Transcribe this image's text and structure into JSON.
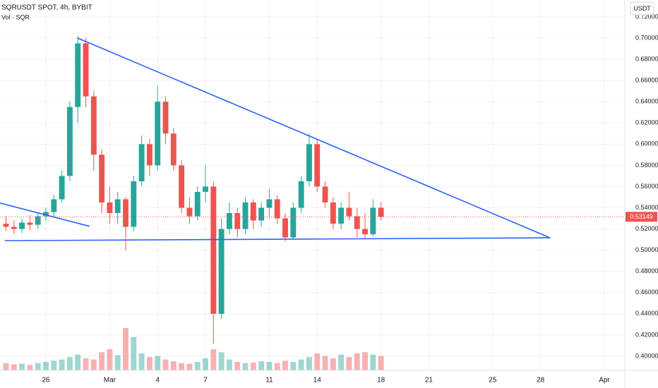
{
  "chart_data": {
    "type": "candlestick",
    "title": "SQRUSDT SPOT, 4h, BYBIT",
    "subtitle": "Vol · SQR",
    "currency": "USDT",
    "up_color": "#26a69a",
    "down_color": "#ef5350",
    "line_color": "#2962ff",
    "grid": true,
    "x": [
      -2.5,
      -2.0,
      -1.5,
      -1.0,
      -0.5,
      0.0,
      0.5,
      1.0,
      1.5,
      2.0,
      2.5,
      3.0,
      3.5,
      4.0,
      4.5,
      5.0,
      5.5,
      6.0,
      6.5,
      7.0,
      7.5,
      8.0,
      8.5,
      9.0,
      9.5,
      10.0,
      10.5,
      11.0,
      11.5,
      12.0,
      12.5,
      13.0,
      13.5,
      14.0,
      14.5,
      15.0,
      15.5,
      16.0,
      16.5,
      17.0,
      17.5,
      18.0,
      18.5,
      19.0,
      19.5,
      20.0,
      20.5,
      21.0
    ],
    "open": [
      0.525,
      0.522,
      0.52,
      0.526,
      0.524,
      0.532,
      0.536,
      0.548,
      0.57,
      0.635,
      0.695,
      0.645,
      0.59,
      0.545,
      0.535,
      0.548,
      0.522,
      0.565,
      0.6,
      0.58,
      0.64,
      0.61,
      0.58,
      0.54,
      0.532,
      0.555,
      0.56,
      0.44,
      0.52,
      0.535,
      0.52,
      0.545,
      0.528,
      0.54,
      0.548,
      0.53,
      0.512,
      0.54,
      0.565,
      0.6,
      0.56,
      0.545,
      0.525,
      0.54,
      0.532,
      0.52,
      0.515,
      0.54
    ],
    "high": [
      0.532,
      0.528,
      0.53,
      0.533,
      0.535,
      0.54,
      0.552,
      0.575,
      0.64,
      0.702,
      0.7,
      0.65,
      0.595,
      0.56,
      0.555,
      0.55,
      0.57,
      0.608,
      0.605,
      0.655,
      0.645,
      0.615,
      0.585,
      0.55,
      0.56,
      0.58,
      0.565,
      0.53,
      0.545,
      0.54,
      0.55,
      0.548,
      0.545,
      0.558,
      0.552,
      0.535,
      0.545,
      0.57,
      0.61,
      0.605,
      0.565,
      0.55,
      0.545,
      0.555,
      0.54,
      0.535,
      0.548,
      0.545
    ],
    "low": [
      0.518,
      0.515,
      0.516,
      0.519,
      0.52,
      0.528,
      0.532,
      0.545,
      0.565,
      0.62,
      0.635,
      0.575,
      0.535,
      0.525,
      0.525,
      0.5,
      0.518,
      0.56,
      0.57,
      0.575,
      0.6,
      0.575,
      0.535,
      0.525,
      0.528,
      0.545,
      0.412,
      0.435,
      0.515,
      0.512,
      0.515,
      0.52,
      0.522,
      0.53,
      0.525,
      0.508,
      0.51,
      0.535,
      0.56,
      0.555,
      0.54,
      0.52,
      0.52,
      0.528,
      0.512,
      0.51,
      0.513,
      0.528
    ],
    "close": [
      0.522,
      0.52,
      0.526,
      0.524,
      0.532,
      0.536,
      0.548,
      0.57,
      0.635,
      0.695,
      0.645,
      0.59,
      0.545,
      0.535,
      0.548,
      0.522,
      0.565,
      0.6,
      0.58,
      0.64,
      0.61,
      0.58,
      0.54,
      0.532,
      0.555,
      0.56,
      0.44,
      0.52,
      0.535,
      0.52,
      0.545,
      0.528,
      0.54,
      0.548,
      0.53,
      0.512,
      0.54,
      0.565,
      0.6,
      0.56,
      0.545,
      0.525,
      0.54,
      0.532,
      0.52,
      0.515,
      0.54,
      0.53149
    ],
    "volume": [
      12,
      10,
      11,
      9,
      12,
      14,
      16,
      18,
      22,
      26,
      20,
      18,
      30,
      35,
      25,
      70,
      55,
      28,
      22,
      24,
      18,
      15,
      12,
      11,
      14,
      20,
      35,
      30,
      18,
      14,
      12,
      13,
      15,
      14,
      12,
      16,
      14,
      18,
      22,
      28,
      24,
      20,
      26,
      22,
      28,
      30,
      26,
      24
    ],
    "last_label": "0.53149",
    "trendlines": [
      {
        "x": [
          1.99,
          31.6
        ],
        "y": [
          0.7,
          0.5117
        ]
      },
      {
        "x": [
          -2.57,
          31.6
        ],
        "y": [
          0.509,
          0.5117
        ]
      },
      {
        "x": [
          -2.88,
          2.74
        ],
        "y": [
          0.5445,
          0.5225
        ]
      }
    ],
    "xlim": [
      -2.876,
      36.28
    ],
    "xticks": [
      {
        "value": 0,
        "label": "26"
      },
      {
        "value": 4,
        "label": "Mar"
      },
      {
        "value": 7,
        "label": "4"
      },
      {
        "value": 10,
        "label": "7"
      },
      {
        "value": 14,
        "label": "11"
      },
      {
        "value": 17,
        "label": "14"
      },
      {
        "value": 21,
        "label": "18"
      },
      {
        "value": 24,
        "label": "21"
      },
      {
        "value": 28,
        "label": "25"
      },
      {
        "value": 31,
        "label": "28"
      },
      {
        "value": 35,
        "label": "Apr"
      }
    ],
    "ylim": [
      0.3867,
      0.7359
    ],
    "yticks": [
      {
        "value": 0.4,
        "label": "0.40000"
      },
      {
        "value": 0.42,
        "label": "0.42000"
      },
      {
        "value": 0.44,
        "label": "0.44000"
      },
      {
        "value": 0.46,
        "label": "0.46000"
      },
      {
        "value": 0.48,
        "label": "0.48000"
      },
      {
        "value": 0.5,
        "label": "0.50000"
      },
      {
        "value": 0.52,
        "label": "0.52000"
      },
      {
        "value": 0.54,
        "label": "0.54000"
      },
      {
        "value": 0.56,
        "label": "0.56000"
      },
      {
        "value": 0.58,
        "label": "0.58000"
      },
      {
        "value": 0.6,
        "label": "0.60000"
      },
      {
        "value": 0.62,
        "label": "0.62000"
      },
      {
        "value": 0.64,
        "label": "0.64000"
      },
      {
        "value": 0.66,
        "label": "0.66000"
      },
      {
        "value": 0.68,
        "label": "0.68000"
      },
      {
        "value": 0.7,
        "label": "0.70000"
      },
      {
        "value": 0.72,
        "label": "0.72000"
      }
    ]
  }
}
